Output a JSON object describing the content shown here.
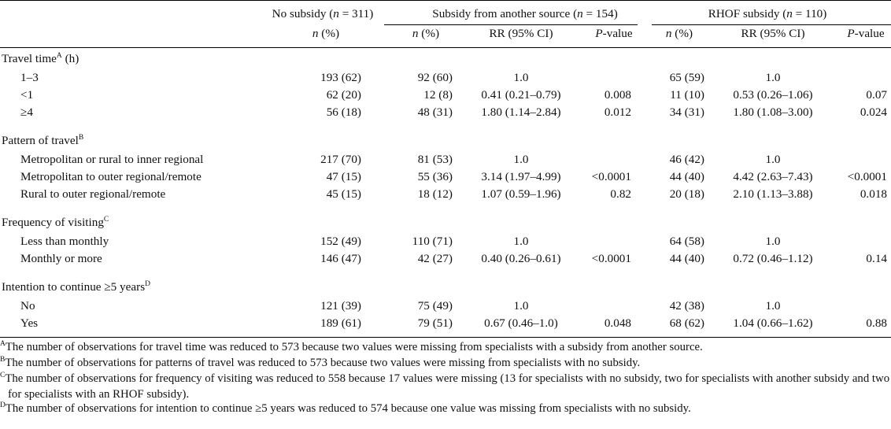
{
  "header": {
    "group_no_subsidy": "No subsidy (n = 311)",
    "group_other": "Subsidy from another source (n = 154)",
    "group_rhof": "RHOF subsidy (n = 110)",
    "col_n": "n (%)",
    "col_rr": "RR (95% CI)",
    "col_p": "P-value"
  },
  "sections": [
    {
      "title": "Travel time",
      "sup": "A",
      "suffix": " (h)",
      "rows": [
        {
          "label": "1–3",
          "none": "193 (62)",
          "other_n": "92 (60)",
          "other_rr": "1.0",
          "other_p": "",
          "rhof_n": "65 (59)",
          "rhof_rr": "1.0",
          "rhof_p": ""
        },
        {
          "label": "<1",
          "none": "62 (20)",
          "other_n": "12 (8)",
          "other_rr": "0.41 (0.21–0.79)",
          "other_p": "0.008",
          "rhof_n": "11 (10)",
          "rhof_rr": "0.53 (0.26–1.06)",
          "rhof_p": "0.07"
        },
        {
          "label": "≥4",
          "none": "56 (18)",
          "other_n": "48 (31)",
          "other_rr": "1.80 (1.14–2.84)",
          "other_p": "0.012",
          "rhof_n": "34 (31)",
          "rhof_rr": "1.80 (1.08–3.00)",
          "rhof_p": "0.024"
        }
      ]
    },
    {
      "title": "Pattern of travel",
      "sup": "B",
      "suffix": "",
      "rows": [
        {
          "label": "Metropolitan or rural to inner regional",
          "none": "217 (70)",
          "other_n": "81 (53)",
          "other_rr": "1.0",
          "other_p": "",
          "rhof_n": "46 (42)",
          "rhof_rr": "1.0",
          "rhof_p": ""
        },
        {
          "label": "Metropolitan to outer regional/remote",
          "none": "47 (15)",
          "other_n": "55 (36)",
          "other_rr": "3.14 (1.97–4.99)",
          "other_p": "<0.0001",
          "rhof_n": "44 (40)",
          "rhof_rr": "4.42 (2.63–7.43)",
          "rhof_p": "<0.0001"
        },
        {
          "label": "Rural to outer regional/remote",
          "none": "45 (15)",
          "other_n": "18 (12)",
          "other_rr": "1.07 (0.59–1.96)",
          "other_p": "0.82",
          "rhof_n": "20 (18)",
          "rhof_rr": "2.10 (1.13–3.88)",
          "rhof_p": "0.018"
        }
      ]
    },
    {
      "title": "Frequency of visiting",
      "sup": "C",
      "suffix": "",
      "rows": [
        {
          "label": "Less than monthly",
          "none": "152 (49)",
          "other_n": "110 (71)",
          "other_rr": "1.0",
          "other_p": "",
          "rhof_n": "64 (58)",
          "rhof_rr": "1.0",
          "rhof_p": ""
        },
        {
          "label": "Monthly or more",
          "none": "146 (47)",
          "other_n": "42 (27)",
          "other_rr": "0.40 (0.26–0.61)",
          "other_p": "<0.0001",
          "rhof_n": "44 (40)",
          "rhof_rr": "0.72 (0.46–1.12)",
          "rhof_p": "0.14"
        }
      ]
    },
    {
      "title": "Intention to continue ≥5 years",
      "sup": "D",
      "suffix": "",
      "rows": [
        {
          "label": "No",
          "none": "121 (39)",
          "other_n": "75 (49)",
          "other_rr": "1.0",
          "other_p": "",
          "rhof_n": "42 (38)",
          "rhof_rr": "1.0",
          "rhof_p": ""
        },
        {
          "label": "Yes",
          "none": "189 (61)",
          "other_n": "79 (51)",
          "other_rr": "0.67 (0.46–1.0)",
          "other_p": "0.048",
          "rhof_n": "68 (62)",
          "rhof_rr": "1.04 (0.66–1.62)",
          "rhof_p": "0.88"
        }
      ]
    }
  ],
  "footnotes": [
    {
      "mark": "A",
      "text": "The number of observations for travel time was reduced to 573 because two values were missing from specialists with a subsidy from another source."
    },
    {
      "mark": "B",
      "text": "The number of observations for patterns of travel was reduced to 573 because two values were missing from specialists with no subsidy."
    },
    {
      "mark": "C",
      "text": "The number of observations for frequency of visiting was reduced to 558 because 17 values were missing (13 for specialists with no subsidy, two for specialists with another subsidy and two for specialists with an RHOF subsidy)."
    },
    {
      "mark": "D",
      "text": "The number of observations for intention to continue ≥5 years was reduced to 574 because one value was missing from specialists with no subsidy."
    }
  ]
}
